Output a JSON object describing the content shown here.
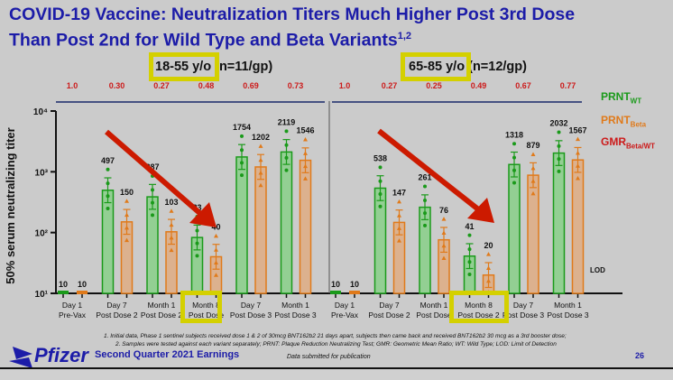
{
  "title_line1": "COVID-19 Vaccine: Neutralization Titers Much Higher Post 3rd Dose",
  "title_line2": "Than Post 2nd for Wild Type and Beta Variants",
  "title_sup": "1,2",
  "legend": {
    "wt": "PRNT",
    "wt_sub": "WT",
    "beta": "PRNT",
    "beta_sub": "Beta",
    "gmr": "GMR",
    "gmr_sub": "Beta/WT"
  },
  "colors": {
    "wt": "#1a9a1a",
    "beta": "#e07a1a",
    "gmr": "#cc1a1a",
    "title": "#1c1ca8",
    "highlight": "#d4d000",
    "arrow": "#cc1a00"
  },
  "footnote1": "1. Initial data, Phase 1 sentinel subjects received dose 1 & 2 of 30mcg BNT162b2 21 days apart, subjects then came back and received BNT162b2 30 mcg as a 3rd booster dose;",
  "footnote2": "2. Samples were tested against each variant separately; PRNT: Plaque Reduction Neutralizing Test; GMR: Geometric Mean Ratio; WT: Wild Type; LOD: Limit of Detection",
  "brand": "Pfizer",
  "earnings": "Second Quarter 2021 Earnings",
  "submitted": "Data submitted for publication",
  "page": "26",
  "chart_data": [
    {
      "type": "bar",
      "group_label_highlight": "18-55 y/o",
      "group_label_rest": "(n=11/gp)",
      "ylabel": "50% serum neutralizing titer",
      "yscale": "log",
      "ylim": [
        10,
        10000
      ],
      "yticks": [
        "10¹",
        "10²",
        "10³",
        "10⁴"
      ],
      "categories": [
        "Day 1\nPre-Vax",
        "Day 7\nPost Dose 2",
        "Month 1\nPost Dose 2",
        "Month 8\nPost Dose",
        "Day 7\nPost Dose 3",
        "Month 1\nPost Dose 3"
      ],
      "series": [
        {
          "name": "PRNT WT",
          "values": [
            10,
            497,
            387,
            83,
            1754,
            2119
          ]
        },
        {
          "name": "PRNT Beta",
          "values": [
            10,
            150,
            103,
            40,
            1202,
            1546
          ]
        }
      ],
      "gmr": [
        "1.0",
        "0.30",
        "0.27",
        "0.48",
        "0.69",
        "0.73"
      ]
    },
    {
      "type": "bar",
      "group_label_highlight": "65-85 y/o",
      "group_label_rest": "(n=12/gp)",
      "yscale": "log",
      "ylim": [
        10,
        10000
      ],
      "lod_label": "LOD",
      "categories": [
        "Day 1\nPre-Vax",
        "Day 7\nPost Dose 2",
        "Month 1\nPost Dose",
        "Month 8\nPost Dose 2",
        "Day 7\nPost Dose 3",
        "Month 1\nPost Dose 3"
      ],
      "series": [
        {
          "name": "PRNT WT",
          "values": [
            10,
            538,
            261,
            41,
            1318,
            2032
          ]
        },
        {
          "name": "PRNT Beta",
          "values": [
            10,
            147,
            76,
            20,
            879,
            1567
          ]
        }
      ],
      "gmr": [
        "1.0",
        "0.27",
        "0.25",
        "0.49",
        "0.67",
        "0.77"
      ]
    }
  ]
}
